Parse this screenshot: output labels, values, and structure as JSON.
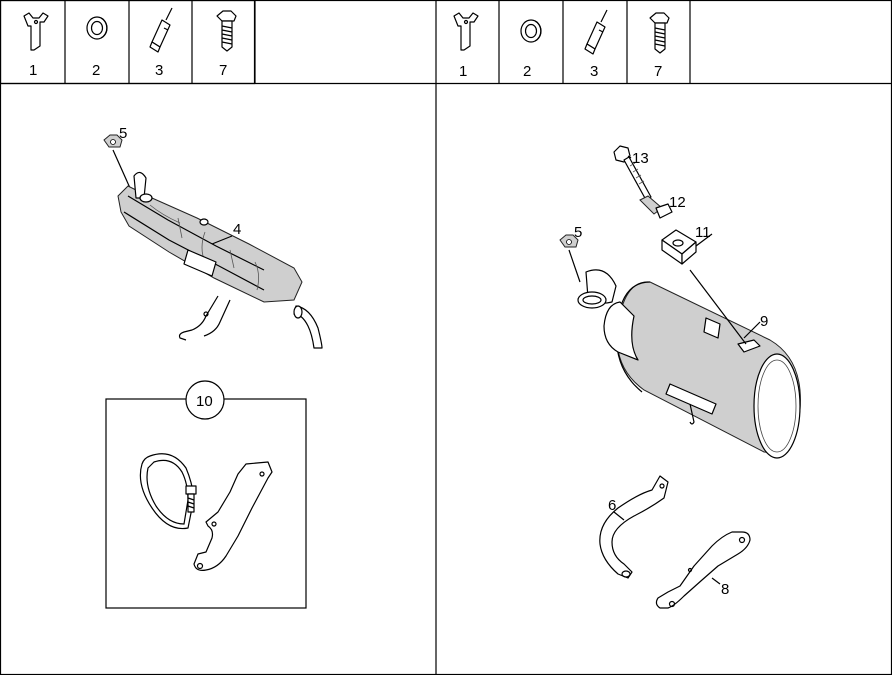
{
  "left_panel": {
    "legend": [
      "1",
      "2",
      "3",
      "7"
    ],
    "callouts": {
      "muffler": "4",
      "nut": "5",
      "kit": "10"
    }
  },
  "right_panel": {
    "legend": [
      "1",
      "2",
      "3",
      "7"
    ],
    "callouts": {
      "nut": "5",
      "bracket_a": "6",
      "bracket_b": "8",
      "silencer": "9",
      "rubber_mount": "11",
      "clamp": "12",
      "bolt": "13"
    }
  },
  "icons": [
    "bracket-icon",
    "ring-icon",
    "sleeve-icon",
    "bolt-icon"
  ]
}
